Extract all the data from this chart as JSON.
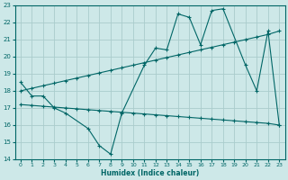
{
  "xlabel": "Humidex (Indice chaleur)",
  "ylabel": "",
  "bg_color": "#cde8e8",
  "grid_color": "#aacccc",
  "line_color": "#006666",
  "xlim": [
    -0.5,
    23.5
  ],
  "ylim": [
    14,
    23
  ],
  "yticks": [
    14,
    15,
    16,
    17,
    18,
    19,
    20,
    21,
    22,
    23
  ],
  "xticks": [
    0,
    1,
    2,
    3,
    4,
    5,
    6,
    7,
    8,
    9,
    10,
    11,
    12,
    13,
    14,
    15,
    16,
    17,
    18,
    19,
    20,
    21,
    22,
    23
  ],
  "line1_x": [
    0,
    1,
    2,
    3,
    4,
    6,
    7,
    8,
    9,
    11,
    12,
    13,
    14,
    15,
    16,
    17,
    18,
    20,
    21,
    22,
    23
  ],
  "line1_y": [
    18.5,
    17.7,
    17.7,
    17.0,
    16.7,
    15.8,
    14.8,
    14.3,
    16.7,
    19.5,
    20.5,
    20.4,
    22.5,
    22.3,
    20.7,
    22.7,
    22.8,
    19.5,
    18.0,
    21.5,
    16.0
  ],
  "line2_x": [
    0,
    1,
    2,
    3,
    4,
    5,
    6,
    7,
    8,
    9,
    10,
    11,
    12,
    13,
    14,
    15,
    16,
    17,
    18,
    19,
    20,
    21,
    22,
    23
  ],
  "line2_y": [
    18.0,
    18.15,
    18.3,
    18.45,
    18.6,
    18.75,
    18.9,
    19.05,
    19.2,
    19.35,
    19.5,
    19.65,
    19.8,
    19.95,
    20.1,
    20.25,
    20.4,
    20.55,
    20.7,
    20.85,
    21.0,
    21.15,
    21.3,
    21.5
  ],
  "line3_x": [
    0,
    1,
    2,
    3,
    4,
    5,
    6,
    7,
    8,
    9,
    10,
    11,
    12,
    13,
    14,
    15,
    16,
    17,
    18,
    19,
    20,
    21,
    22,
    23
  ],
  "line3_y": [
    17.2,
    17.15,
    17.1,
    17.05,
    17.0,
    16.95,
    16.9,
    16.85,
    16.8,
    16.75,
    16.7,
    16.65,
    16.6,
    16.55,
    16.5,
    16.45,
    16.4,
    16.35,
    16.3,
    16.25,
    16.2,
    16.15,
    16.1,
    16.0
  ]
}
